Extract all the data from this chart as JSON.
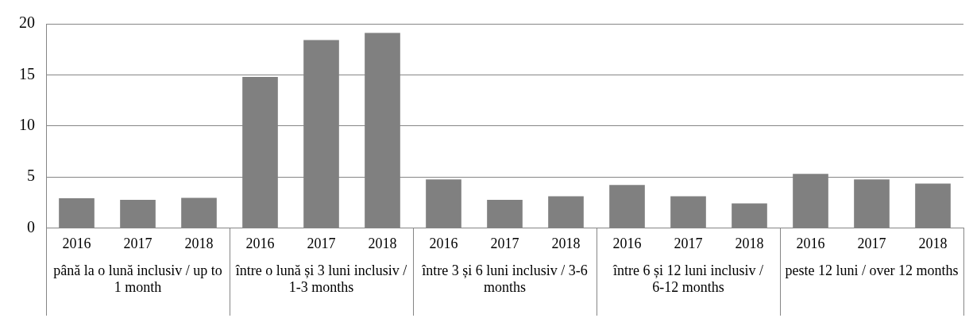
{
  "chart_data": {
    "type": "bar",
    "categories": [
      "2016",
      "2017",
      "2018",
      "2016",
      "2017",
      "2018",
      "2016",
      "2017",
      "2018",
      "2016",
      "2017",
      "2018",
      "2016",
      "2017",
      "2018"
    ],
    "values": [
      2.9,
      2.75,
      2.95,
      14.8,
      18.4,
      19.1,
      4.75,
      2.75,
      3.1,
      4.2,
      3.1,
      2.4,
      5.3,
      4.75,
      4.35
    ],
    "color": "#808080",
    "annotations": [
      "până la o lună inclusiv / up to 1 month",
      "între o lună și 3 luni inclusiv / 1-3 months",
      "între 3 și 6 luni inclusiv / 3-6 months",
      "între 6 și 12 luni inclusiv / 6-12 months",
      "peste 12 luni / over 12 months"
    ],
    "ylim": [
      0,
      20
    ],
    "yticks": [
      0,
      5,
      10,
      15,
      20
    ],
    "grid": "y",
    "legend": false
  }
}
